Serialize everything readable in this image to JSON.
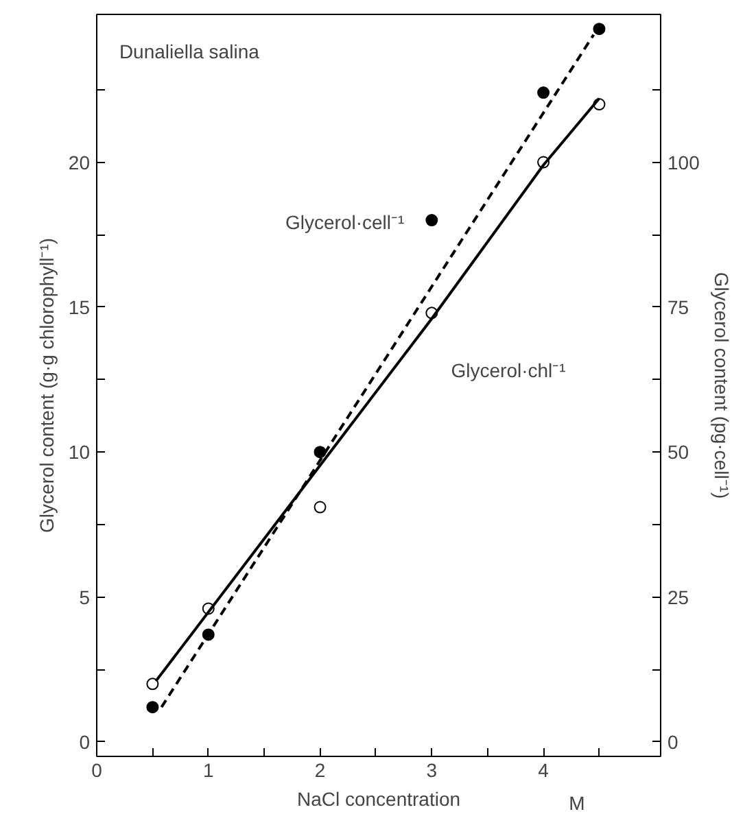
{
  "chart_data": {
    "type": "scatter",
    "title": "Dunaliella salina",
    "xlabel": "NaCl concentration",
    "ylabel": "Glycerol content (g·g chlorophyll⁻¹)",
    "y2label": "Glycerol content (pg·cell⁻¹)",
    "xlim": [
      0,
      5.05
    ],
    "ylim": [
      -0.5,
      25.1
    ],
    "y2lim": [
      -2.5,
      125.5
    ],
    "xticks": [
      0,
      {
        "value": 0.5,
        "label": null
      },
      1,
      {
        "value": 1.5,
        "label": null
      },
      2,
      {
        "value": 2.5,
        "label": null
      },
      3,
      {
        "value": 3.5,
        "label": null
      },
      4,
      {
        "value": 4.5,
        "label": null
      }
    ],
    "yticks": [
      0,
      {
        "value": 2.5,
        "label": null
      },
      5,
      {
        "value": 7.5,
        "label": null
      },
      10,
      {
        "value": 12.5,
        "label": null
      },
      15,
      {
        "value": 17.5,
        "label": null
      },
      20,
      {
        "value": 22.5,
        "label": null
      }
    ],
    "y2ticks": [
      0,
      {
        "value": 12.5,
        "label": null
      },
      25,
      {
        "value": 37.5,
        "label": null
      },
      50,
      {
        "value": 62.5,
        "label": null
      },
      75,
      {
        "value": 87.5,
        "label": null
      },
      100,
      {
        "value": 112.5,
        "label": null
      }
    ],
    "grid": false,
    "x": [
      0.5,
      1,
      2,
      3,
      4,
      4.5
    ],
    "series": [
      {
        "marker": "circle_open",
        "color": "#000000",
        "values": [
          2.0,
          4.6,
          8.1,
          14.8,
          20.0,
          22.0
        ]
      },
      {
        "marker": "circle",
        "color": "#000000",
        "axis": "y2",
        "values": [
          6,
          18.5,
          50,
          90,
          112,
          123
        ]
      },
      {
        "type": "line",
        "line_style": "solid",
        "color": "#000000",
        "x": [
          0.53,
          3.0,
          4.0,
          4.5
        ],
        "values": [
          2.1,
          14.6,
          19.9,
          22.2
        ]
      },
      {
        "type": "line",
        "line_style": "dashed",
        "color": "#000000",
        "axis": "y2",
        "x": [
          0.58,
          4.45
        ],
        "values": [
          6,
          122
        ]
      }
    ],
    "annotations": [
      "Glycerol·cell⁻¹",
      "Glycerol·chl⁻¹",
      "M"
    ]
  }
}
